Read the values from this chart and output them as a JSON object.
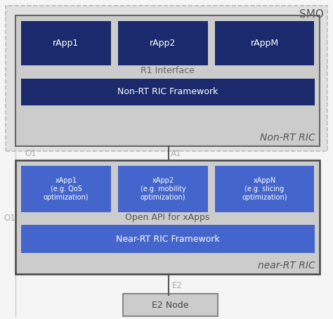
{
  "bg_color": "#f5f5f5",
  "smo_bg": "#e0e0e0",
  "smo_border": "#bbbbbb",
  "nonrt_bg": "#cccccc",
  "nonrt_border": "#666666",
  "nearrt_bg": "#cccccc",
  "nearrt_border": "#444444",
  "dark_blue": "#1a2a6c",
  "mid_blue": "#4466cc",
  "e2node_bg": "#cccccc",
  "e2node_border": "#888888",
  "text_light": "#ffffff",
  "text_dark": "#555555",
  "text_label_color": "#aaaaaa",
  "smo_label": "SMO",
  "nonrt_label": "Non-RT RIC",
  "nearrt_label": "near-RT RIC",
  "rapp_boxes": [
    "rApp1",
    "rApp2",
    "rAppM"
  ],
  "r1_label": "R1 Interface",
  "nonrt_fw_label": "Non-RT RIC Framework",
  "xapp_boxes": [
    "xApp1\n(e.g. QoS\noptimization)",
    "xApp2\n(e.g. mobility\noptimization)",
    "xAppN\n(e.g. slicing\noptimization)"
  ],
  "openapi_label": "Open API for xApps",
  "nearrt_fw_label": "Near-RT RIC Framework",
  "e2node_label": "E2 Node",
  "o1_top_label": "O1",
  "a1_label": "A1",
  "e2_label": "E2",
  "o1_side_label": "O1",
  "fig_w": 4.74,
  "fig_h": 4.54,
  "dpi": 100
}
